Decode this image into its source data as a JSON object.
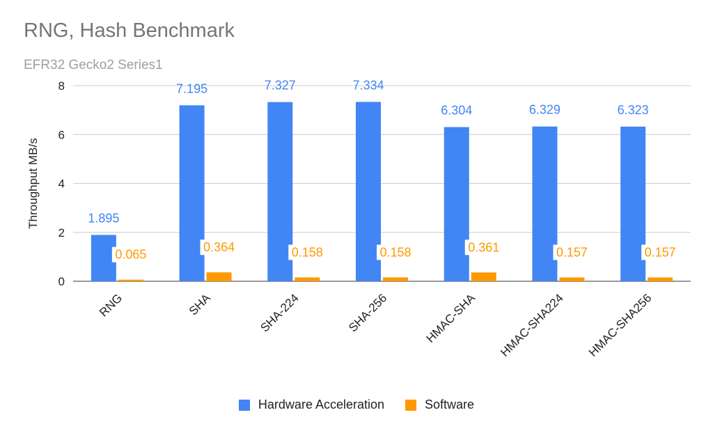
{
  "chart_data": {
    "type": "bar",
    "title": "RNG, Hash Benchmark",
    "subtitle": "EFR32 Gecko2 Series1",
    "xlabel": "",
    "ylabel": "Throughput MB/s",
    "ylim": [
      0,
      8
    ],
    "yticks": [
      "0",
      "2",
      "4",
      "6",
      "8"
    ],
    "grid": true,
    "legend_position": "bottom",
    "categories": [
      "RNG",
      "SHA",
      "SHA-224",
      "SHA-256",
      "HMAC-SHA",
      "HMAC-SHA224",
      "HMAC-SHA256"
    ],
    "series": [
      {
        "name": "Hardware Acceleration",
        "color": "#4285f4",
        "values": [
          1.895,
          7.195,
          7.327,
          7.334,
          6.304,
          6.329,
          6.323
        ],
        "labels": [
          "1.895",
          "7.195",
          "7.327",
          "7.334",
          "6.304",
          "6.329",
          "6.323"
        ]
      },
      {
        "name": "Software",
        "color": "#ff9900",
        "values": [
          0.065,
          0.364,
          0.158,
          0.158,
          0.361,
          0.157,
          0.157
        ],
        "labels": [
          "0.065",
          "0.364",
          "0.158",
          "0.158",
          "0.361",
          "0.157",
          "0.157"
        ]
      }
    ]
  }
}
